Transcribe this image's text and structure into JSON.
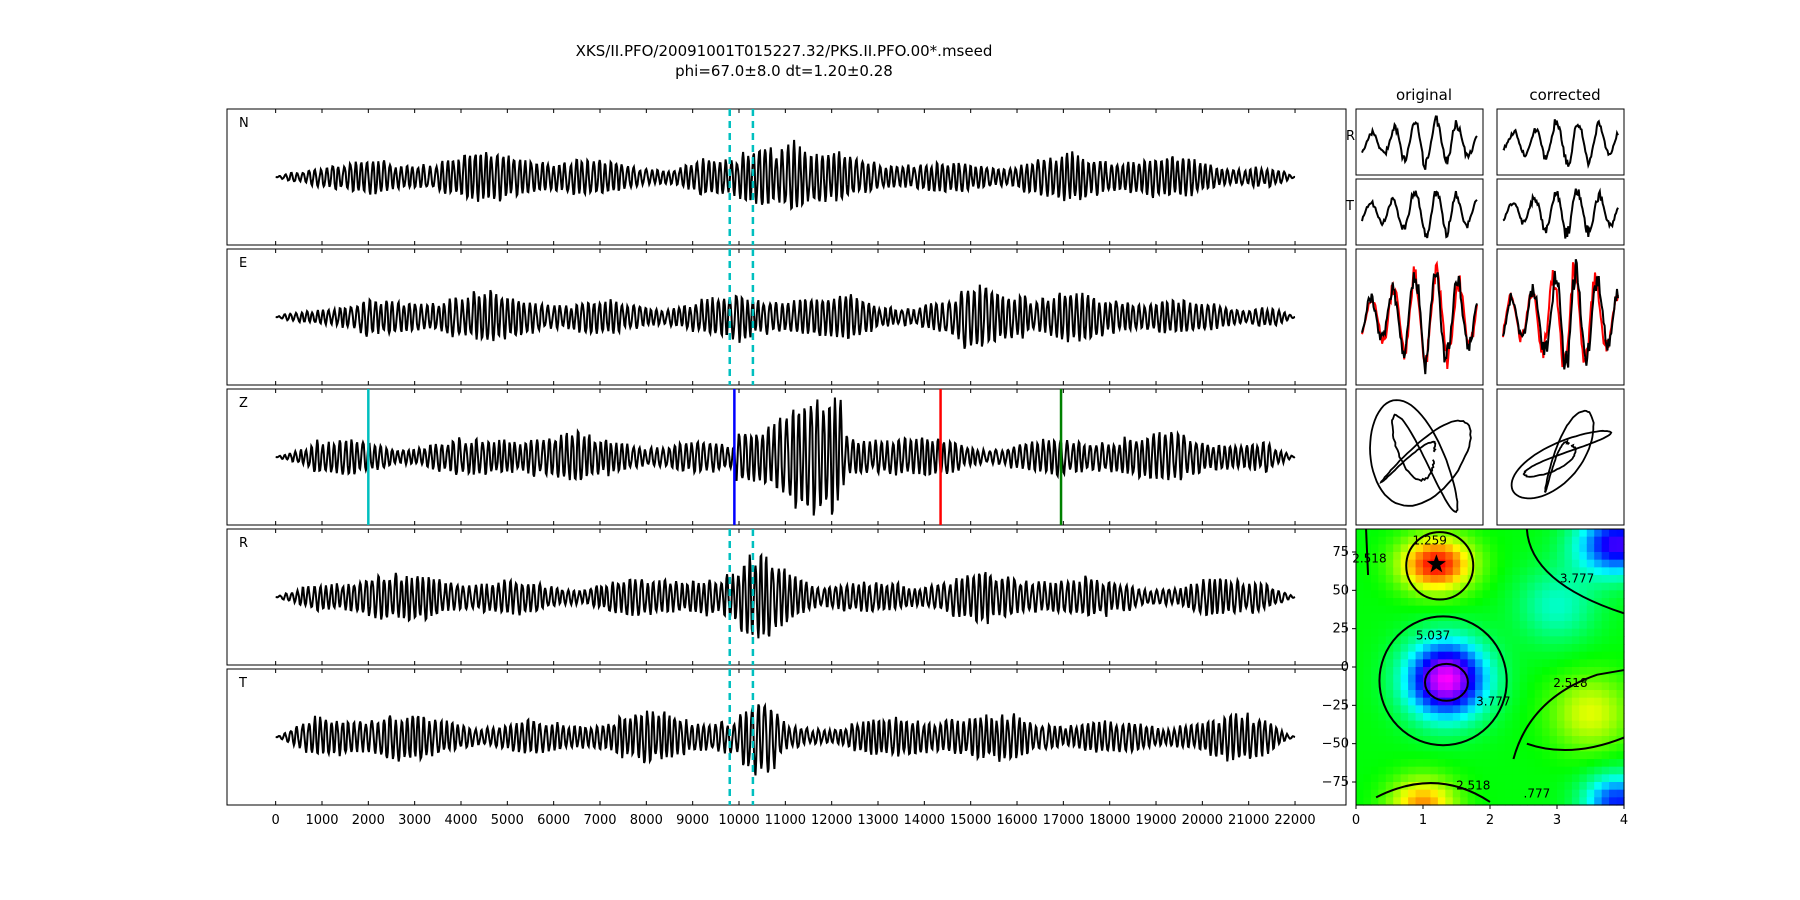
{
  "title": {
    "line1": "XKS/II.PFO/20091001T015227.32/PKS.II.PFO.00*.mseed",
    "line2": "phi=67.0±8.0 dt=1.20±0.28"
  },
  "chart_data": [
    {
      "type": "line",
      "title": "",
      "xlim": [
        -1050,
        23100
      ],
      "x_ticks": [
        0,
        1000,
        2000,
        3000,
        4000,
        5000,
        6000,
        7000,
        8000,
        9000,
        10000,
        11000,
        12000,
        13000,
        14000,
        15000,
        16000,
        17000,
        18000,
        19000,
        20000,
        21000,
        22000
      ],
      "x_tick_labels": [
        "0",
        "1000",
        "2000",
        "3000",
        "4000",
        "5000",
        "6000",
        "7000",
        "8000",
        "9000",
        "10000",
        "11000",
        "12000",
        "13000",
        "14000",
        "15000",
        "16000",
        "17000",
        "18000",
        "19000",
        "20000",
        "21000",
        "22000"
      ],
      "trace_x_range": [
        0,
        22000
      ],
      "grid": false,
      "panels": [
        {
          "label": "N",
          "window_lines": [
            9800,
            10300
          ],
          "seed": 11,
          "big_amp_x": [
            10000,
            11400
          ]
        },
        {
          "label": "E",
          "window_lines": [
            9800,
            10300
          ],
          "seed": 23,
          "big_amp_x": [
            14700,
            16200
          ]
        },
        {
          "label": "Z",
          "window_lines": [],
          "seed": 37,
          "big_amp_x": [
            9900,
            12200
          ],
          "picks": [
            {
              "x": 2000,
              "color": "#00bfbf"
            },
            {
              "x": 9900,
              "color": "#0000ff"
            },
            {
              "x": 14350,
              "color": "#ff0000"
            },
            {
              "x": 16950,
              "color": "#008000"
            }
          ]
        },
        {
          "label": "R",
          "window_lines": [
            9800,
            10300
          ],
          "seed": 53,
          "big_amp_x": [
            10000,
            11500
          ]
        },
        {
          "label": "T",
          "window_lines": [
            9800,
            10300
          ],
          "seed": 71,
          "big_amp_x": [
            10000,
            10800
          ]
        }
      ],
      "window_line_color": "#00bfbf"
    },
    {
      "type": "line",
      "columns": [
        "original",
        "corrected"
      ],
      "rows": [
        {
          "label": "R",
          "original_seed": 101,
          "corrected_seed": 113
        },
        {
          "label": "T",
          "original_seed": 127,
          "corrected_seed": 131
        },
        {
          "label": "",
          "kind": "overlay",
          "colors": [
            "#ff0000",
            "#000000"
          ],
          "original_seed": 137,
          "corrected_seed": 139
        },
        {
          "label": "",
          "kind": "particle_motion",
          "original_seed": 149,
          "corrected_seed": 151
        }
      ]
    },
    {
      "type": "heatmap",
      "xlim": [
        0,
        4
      ],
      "ylim": [
        -90,
        90
      ],
      "x_ticks": [
        0,
        1,
        2,
        3,
        4
      ],
      "x_tick_labels": [
        "0",
        "1",
        "2",
        "3",
        "4"
      ],
      "y_ticks": [
        75,
        50,
        25,
        0,
        -25,
        -50,
        -75
      ],
      "y_tick_labels": [
        "75",
        "50",
        "25",
        "0",
        "−25",
        "−50",
        "−75"
      ],
      "colormap": "gist_rainbow_r",
      "contour_labels": [
        {
          "text": "1.259",
          "dt": 1.1,
          "phi": 80
        },
        {
          "text": "2.518",
          "dt": 0.2,
          "phi": 68
        },
        {
          "text": "3.777",
          "dt": 3.3,
          "phi": 55
        },
        {
          "text": "5.037",
          "dt": 1.15,
          "phi": 18
        },
        {
          "text": "3.777",
          "dt": 2.05,
          "phi": -25
        },
        {
          "text": "2.518",
          "dt": 3.2,
          "phi": -13
        },
        {
          "text": "2.518",
          "dt": 1.75,
          "phi": -80
        },
        {
          "text": ".777",
          "dt": 2.7,
          "phi": -85
        }
      ],
      "best": {
        "dt": 1.2,
        "phi": 67.0
      }
    }
  ]
}
